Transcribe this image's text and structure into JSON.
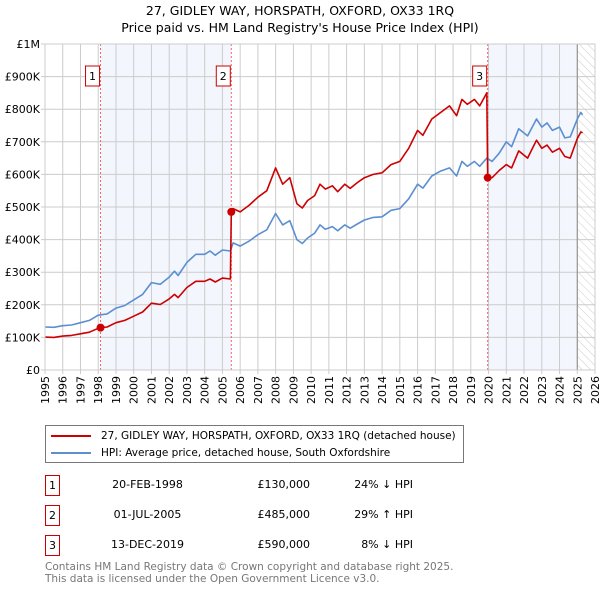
{
  "chart_data": {
    "type": "line",
    "title": "27, GIDLEY WAY, HORSPATH, OXFORD, OX33 1RQ",
    "subtitle": "Price paid vs. HM Land Registry's House Price Index (HPI)",
    "xlim": [
      1995,
      2026
    ],
    "ylim": [
      0,
      1000000
    ],
    "x_ticks": [
      "1995",
      "1996",
      "1997",
      "1998",
      "1999",
      "2000",
      "2001",
      "2002",
      "2003",
      "2004",
      "2005",
      "2006",
      "2007",
      "2008",
      "2009",
      "2010",
      "2011",
      "2012",
      "2013",
      "2014",
      "2015",
      "2016",
      "2017",
      "2018",
      "2019",
      "2020",
      "2021",
      "2022",
      "2023",
      "2024",
      "2025",
      "2026"
    ],
    "y_ticks": [
      {
        "v": 0,
        "label": "£0"
      },
      {
        "v": 100000,
        "label": "£100K"
      },
      {
        "v": 200000,
        "label": "£200K"
      },
      {
        "v": 300000,
        "label": "£300K"
      },
      {
        "v": 400000,
        "label": "£400K"
      },
      {
        "v": 500000,
        "label": "£500K"
      },
      {
        "v": 600000,
        "label": "£600K"
      },
      {
        "v": 700000,
        "label": "£700K"
      },
      {
        "v": 800000,
        "label": "£800K"
      },
      {
        "v": 900000,
        "label": "£900K"
      },
      {
        "v": 1000000,
        "label": "£1M"
      }
    ],
    "grid": true,
    "shaded_ranges": [
      [
        1998.13,
        2005.5
      ],
      [
        2019.95,
        2025.0
      ]
    ],
    "forecast_from": 2025.0,
    "series": [
      {
        "name": "27, GIDLEY WAY, HORSPATH, OXFORD, OX33 1RQ (detached house)",
        "color": "#cc0000",
        "unit": "K",
        "points": [
          [
            1995,
            101
          ],
          [
            1995.5,
            100
          ],
          [
            1996,
            104
          ],
          [
            1996.5,
            106
          ],
          [
            1997,
            111
          ],
          [
            1997.5,
            116
          ],
          [
            1998,
            128
          ],
          [
            1998.13,
            130
          ],
          [
            1998.5,
            132
          ],
          [
            1999,
            145
          ],
          [
            1999.5,
            152
          ],
          [
            2000,
            165
          ],
          [
            2000.5,
            178
          ],
          [
            2001,
            205
          ],
          [
            2001.5,
            201
          ],
          [
            2002,
            218
          ],
          [
            2002.3,
            232
          ],
          [
            2002.5,
            222
          ],
          [
            2003,
            253
          ],
          [
            2003.5,
            272
          ],
          [
            2004,
            272
          ],
          [
            2004.3,
            279
          ],
          [
            2004.6,
            270
          ],
          [
            2005,
            282
          ],
          [
            2005.45,
            279
          ],
          [
            2005.5,
            485
          ],
          [
            2005.6,
            495
          ],
          [
            2006,
            485
          ],
          [
            2006.5,
            505
          ],
          [
            2007,
            530
          ],
          [
            2007.5,
            550
          ],
          [
            2008,
            620
          ],
          [
            2008.4,
            570
          ],
          [
            2008.8,
            590
          ],
          [
            2009.2,
            510
          ],
          [
            2009.5,
            497
          ],
          [
            2009.8,
            520
          ],
          [
            2010.2,
            535
          ],
          [
            2010.5,
            570
          ],
          [
            2010.8,
            555
          ],
          [
            2011.2,
            565
          ],
          [
            2011.5,
            547
          ],
          [
            2011.9,
            570
          ],
          [
            2012.2,
            557
          ],
          [
            2012.6,
            575
          ],
          [
            2013,
            590
          ],
          [
            2013.5,
            600
          ],
          [
            2014,
            605
          ],
          [
            2014.5,
            630
          ],
          [
            2015,
            640
          ],
          [
            2015.5,
            680
          ],
          [
            2016,
            735
          ],
          [
            2016.3,
            720
          ],
          [
            2016.8,
            770
          ],
          [
            2017.3,
            790
          ],
          [
            2017.8,
            810
          ],
          [
            2018.2,
            780
          ],
          [
            2018.5,
            830
          ],
          [
            2018.8,
            815
          ],
          [
            2019.2,
            830
          ],
          [
            2019.5,
            810
          ],
          [
            2019.9,
            850
          ],
          [
            2019.95,
            590
          ],
          [
            2020.2,
            590
          ],
          [
            2020.6,
            612
          ],
          [
            2021,
            630
          ],
          [
            2021.3,
            620
          ],
          [
            2021.7,
            672
          ],
          [
            2022.2,
            650
          ],
          [
            2022.7,
            705
          ],
          [
            2023,
            680
          ],
          [
            2023.3,
            690
          ],
          [
            2023.6,
            668
          ],
          [
            2024,
            680
          ],
          [
            2024.3,
            655
          ],
          [
            2024.6,
            650
          ],
          [
            2025,
            710
          ],
          [
            2025.2,
            730
          ],
          [
            2025.3,
            728
          ]
        ]
      },
      {
        "name": "HPI: Average price, detached house, South Oxfordshire",
        "color": "#5b8fd0",
        "unit": "K",
        "points": [
          [
            1995,
            132
          ],
          [
            1995.5,
            131
          ],
          [
            1996,
            136
          ],
          [
            1996.5,
            138
          ],
          [
            1997,
            145
          ],
          [
            1997.5,
            152
          ],
          [
            1998,
            168
          ],
          [
            1998.5,
            172
          ],
          [
            1999,
            190
          ],
          [
            1999.5,
            198
          ],
          [
            2000,
            215
          ],
          [
            2000.5,
            232
          ],
          [
            2001,
            268
          ],
          [
            2001.5,
            263
          ],
          [
            2002,
            285
          ],
          [
            2002.3,
            303
          ],
          [
            2002.5,
            290
          ],
          [
            2003,
            330
          ],
          [
            2003.5,
            355
          ],
          [
            2004,
            355
          ],
          [
            2004.3,
            365
          ],
          [
            2004.6,
            352
          ],
          [
            2005,
            368
          ],
          [
            2005.45,
            365
          ],
          [
            2005.6,
            390
          ],
          [
            2006,
            380
          ],
          [
            2006.5,
            395
          ],
          [
            2007,
            415
          ],
          [
            2007.5,
            430
          ],
          [
            2008,
            480
          ],
          [
            2008.4,
            445
          ],
          [
            2008.8,
            458
          ],
          [
            2009.2,
            400
          ],
          [
            2009.5,
            388
          ],
          [
            2009.8,
            405
          ],
          [
            2010.2,
            420
          ],
          [
            2010.5,
            445
          ],
          [
            2010.8,
            432
          ],
          [
            2011.2,
            440
          ],
          [
            2011.5,
            427
          ],
          [
            2011.9,
            445
          ],
          [
            2012.2,
            435
          ],
          [
            2012.6,
            448
          ],
          [
            2013,
            460
          ],
          [
            2013.5,
            468
          ],
          [
            2014,
            470
          ],
          [
            2014.5,
            490
          ],
          [
            2015,
            495
          ],
          [
            2015.5,
            525
          ],
          [
            2016,
            570
          ],
          [
            2016.3,
            558
          ],
          [
            2016.8,
            595
          ],
          [
            2017.3,
            610
          ],
          [
            2017.8,
            620
          ],
          [
            2018.2,
            595
          ],
          [
            2018.5,
            640
          ],
          [
            2018.8,
            625
          ],
          [
            2019.2,
            640
          ],
          [
            2019.5,
            625
          ],
          [
            2019.9,
            650
          ],
          [
            2020.2,
            640
          ],
          [
            2020.6,
            665
          ],
          [
            2021,
            700
          ],
          [
            2021.3,
            685
          ],
          [
            2021.7,
            740
          ],
          [
            2022.2,
            718
          ],
          [
            2022.7,
            770
          ],
          [
            2023,
            745
          ],
          [
            2023.3,
            758
          ],
          [
            2023.6,
            735
          ],
          [
            2024,
            745
          ],
          [
            2024.3,
            712
          ],
          [
            2024.6,
            715
          ],
          [
            2025,
            770
          ],
          [
            2025.2,
            790
          ],
          [
            2025.3,
            783
          ]
        ]
      }
    ],
    "sales": [
      {
        "num": "1",
        "x": 1998.13,
        "value": 130000,
        "date": "20-FEB-1998",
        "price": "£130,000",
        "hpi": "24% ↓ HPI"
      },
      {
        "num": "2",
        "x": 2005.5,
        "value": 485000,
        "date": "01-JUL-2005",
        "price": "£485,000",
        "hpi": "29% ↑ HPI"
      },
      {
        "num": "3",
        "x": 2019.95,
        "value": 590000,
        "date": "13-DEC-2019",
        "price": "£590,000",
        "hpi": "8% ↓ HPI"
      }
    ]
  },
  "legend": {
    "red": "27, GIDLEY WAY, HORSPATH, OXFORD, OX33 1RQ (detached house)",
    "blue": "HPI: Average price, detached house, South Oxfordshire"
  },
  "footer": {
    "line1": "Contains HM Land Registry data © Crown copyright and database right 2025.",
    "line2": "This data is licensed under the Open Government Licence v3.0."
  }
}
